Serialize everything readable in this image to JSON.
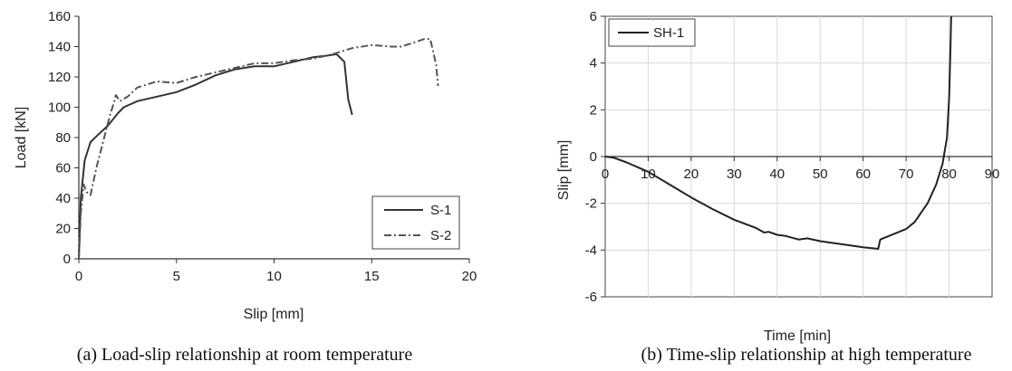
{
  "chart_data": [
    {
      "type": "line",
      "caption": "(a) Load-slip relationship at room temperature",
      "xlabel": "Slip [mm]",
      "ylabel": "Load [kN]",
      "xlim": [
        0,
        20
      ],
      "ylim": [
        0,
        160
      ],
      "xticks": [
        0,
        5,
        10,
        15,
        20
      ],
      "yticks": [
        0,
        20,
        40,
        60,
        80,
        100,
        120,
        140,
        160
      ],
      "grid": false,
      "legend": "bottom-right",
      "series": [
        {
          "name": "S-1",
          "style": "solid",
          "color": "#333333",
          "points": [
            [
              0,
              0
            ],
            [
              0.1,
              40
            ],
            [
              0.3,
              65
            ],
            [
              0.6,
              77
            ],
            [
              1.0,
              82
            ],
            [
              1.5,
              88
            ],
            [
              2.0,
              96
            ],
            [
              2.3,
              100
            ],
            [
              3.0,
              104
            ],
            [
              4.0,
              107
            ],
            [
              5.0,
              110
            ],
            [
              6.0,
              115
            ],
            [
              7.0,
              121
            ],
            [
              8.0,
              125
            ],
            [
              9.0,
              127
            ],
            [
              10.0,
              127
            ],
            [
              11.0,
              130
            ],
            [
              12.0,
              133
            ],
            [
              12.7,
              134
            ],
            [
              13.2,
              135
            ],
            [
              13.6,
              130
            ],
            [
              13.8,
              105
            ],
            [
              14.0,
              95
            ]
          ]
        },
        {
          "name": "S-2",
          "style": "dashdot",
          "color": "#555555",
          "points": [
            [
              0,
              0
            ],
            [
              0.1,
              30
            ],
            [
              0.25,
              49
            ],
            [
              0.4,
              44
            ],
            [
              0.6,
              42
            ],
            [
              0.9,
              60
            ],
            [
              1.3,
              80
            ],
            [
              1.6,
              95
            ],
            [
              1.8,
              103
            ],
            [
              1.9,
              108
            ],
            [
              2.1,
              104
            ],
            [
              2.5,
              107
            ],
            [
              3.0,
              113
            ],
            [
              4.0,
              117
            ],
            [
              5.0,
              116
            ],
            [
              6.0,
              120
            ],
            [
              7.0,
              123
            ],
            [
              8.0,
              126
            ],
            [
              9.0,
              129
            ],
            [
              10.0,
              129
            ],
            [
              11.0,
              131
            ],
            [
              12.0,
              132
            ],
            [
              13.0,
              135
            ],
            [
              14.0,
              139
            ],
            [
              15.0,
              141
            ],
            [
              16.0,
              140
            ],
            [
              16.5,
              140
            ],
            [
              17.0,
              142
            ],
            [
              17.7,
              145
            ],
            [
              18.0,
              145
            ],
            [
              18.3,
              128
            ],
            [
              18.4,
              114
            ]
          ]
        }
      ]
    },
    {
      "type": "line",
      "caption": "(b) Time-slip relationship at high temperature",
      "xlabel": "Time [min]",
      "ylabel": "Slip [mm]",
      "xlim": [
        0,
        90
      ],
      "ylim": [
        -6,
        6
      ],
      "xticks": [
        0,
        10,
        20,
        30,
        40,
        50,
        60,
        70,
        80,
        90
      ],
      "yticks": [
        -6,
        -4,
        -2,
        0,
        2,
        4,
        6
      ],
      "grid": true,
      "legend": "top-left",
      "series": [
        {
          "name": "SH-1",
          "style": "solid",
          "color": "#222222",
          "points": [
            [
              0,
              0
            ],
            [
              2,
              -0.05
            ],
            [
              5,
              -0.25
            ],
            [
              10,
              -0.65
            ],
            [
              15,
              -1.2
            ],
            [
              20,
              -1.75
            ],
            [
              25,
              -2.25
            ],
            [
              30,
              -2.7
            ],
            [
              35,
              -3.05
            ],
            [
              37,
              -3.25
            ],
            [
              38,
              -3.22
            ],
            [
              40,
              -3.35
            ],
            [
              42,
              -3.4
            ],
            [
              45,
              -3.55
            ],
            [
              47,
              -3.5
            ],
            [
              50,
              -3.62
            ],
            [
              55,
              -3.75
            ],
            [
              60,
              -3.88
            ],
            [
              63.5,
              -3.95
            ],
            [
              64,
              -3.55
            ],
            [
              66,
              -3.4
            ],
            [
              70,
              -3.1
            ],
            [
              72,
              -2.8
            ],
            [
              75,
              -2.0
            ],
            [
              77,
              -1.2
            ],
            [
              78.5,
              -0.3
            ],
            [
              79.5,
              0.8
            ],
            [
              80,
              2.5
            ],
            [
              80.3,
              4.5
            ],
            [
              80.5,
              6
            ]
          ]
        }
      ]
    }
  ]
}
